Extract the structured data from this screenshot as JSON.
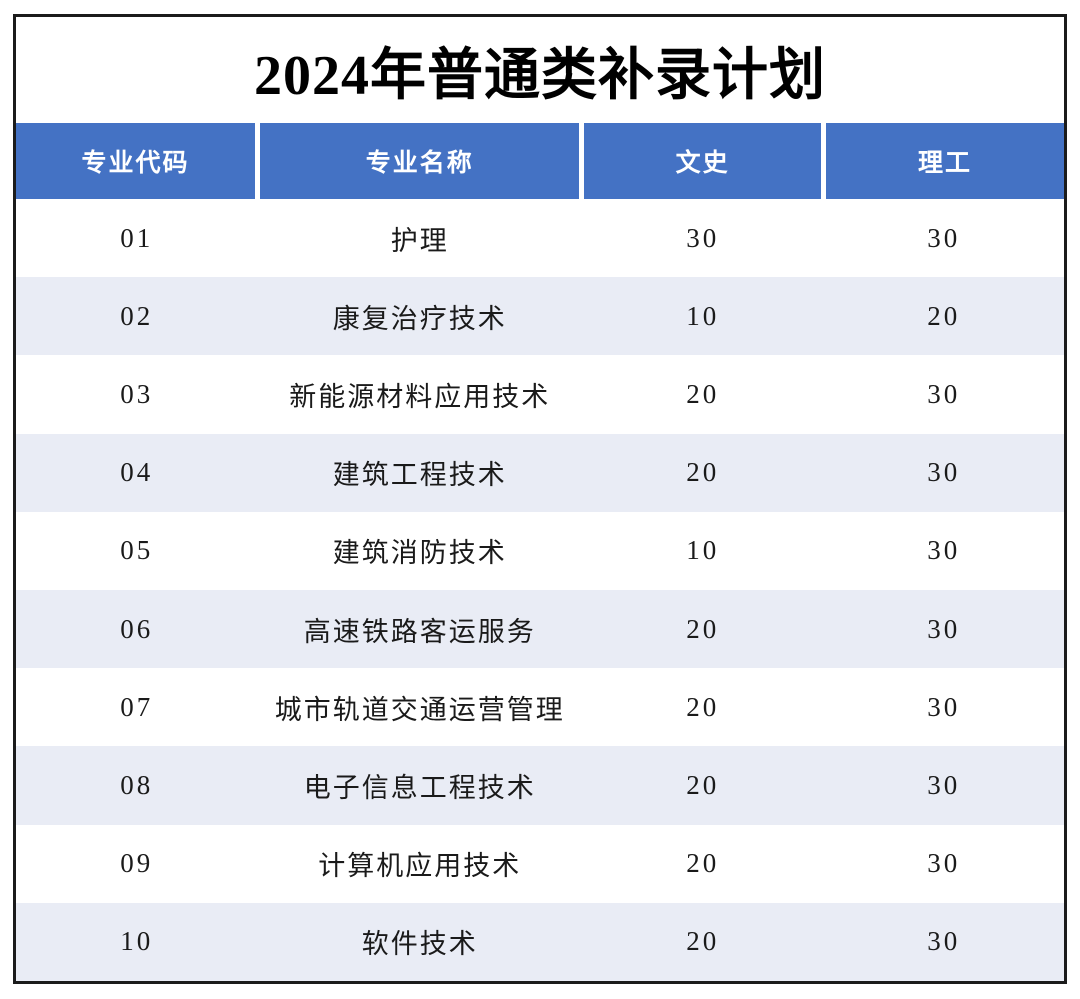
{
  "title": "2024年普通类补录计划",
  "colors": {
    "header_bg": "#4472C4",
    "header_text": "#FFFFFF",
    "row_bg": "#FFFFFF",
    "row_alt_bg": "#E9ECF5",
    "border": "#1B1B1B",
    "body_text": "#1A1A1A"
  },
  "table": {
    "columns": [
      "专业代码",
      "专业名称",
      "文史",
      "理工"
    ],
    "rows": [
      [
        "01",
        "护理",
        "30",
        "30"
      ],
      [
        "02",
        "康复治疗技术",
        "10",
        "20"
      ],
      [
        "03",
        "新能源材料应用技术",
        "20",
        "30"
      ],
      [
        "04",
        "建筑工程技术",
        "20",
        "30"
      ],
      [
        "05",
        "建筑消防技术",
        "10",
        "30"
      ],
      [
        "06",
        "高速铁路客运服务",
        "20",
        "30"
      ],
      [
        "07",
        "城市轨道交通运营管理",
        "20",
        "30"
      ],
      [
        "08",
        "电子信息工程技术",
        "20",
        "30"
      ],
      [
        "09",
        "计算机应用技术",
        "20",
        "30"
      ],
      [
        "10",
        "软件技术",
        "20",
        "30"
      ]
    ]
  }
}
